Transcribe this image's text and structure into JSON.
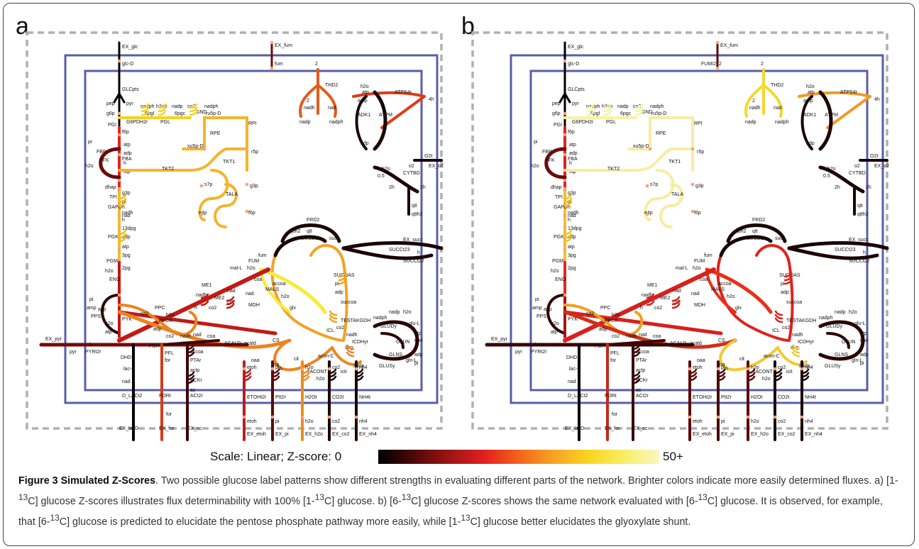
{
  "panels": [
    {
      "letter": "a",
      "rxn": {
        "GLC": "#000",
        "OXPPP": "#f5d21e",
        "NONOXPPP": "#f3b52a",
        "UPPER": "#e2231a",
        "LOWER": "#f3bc22",
        "ENO": "#c41414",
        "PPS": "#2e0505",
        "PYK": "#c41414",
        "FBP": "#6e0a0a",
        "PYR": "#7a0808",
        "ACE": "#3a0606",
        "PPC": "#f0821e",
        "PPCK": "#f0821e",
        "ME": "#c21a14",
        "TCA": "#f2a322",
        "GLX": "#f7ea3a",
        "CIT": "#f0841e",
        "SDH": "#1a0404",
        "THD": "#e35a1c",
        "ATPS": "#e13a18",
        "NADH": "#1a0404",
        "GLN": "#2a0505",
        "ETOH": "#b51e1e",
        "PI": "#5a0a0a",
        "H2O": "#ef8a1e",
        "CO2": "#1a0404",
        "NH4": "#1a0404",
        "LAC": "#000",
        "FOR": "#d43c1a",
        "AC": "#3a0606",
        "FUM": "#7a0808"
      }
    },
    {
      "letter": "b",
      "rxn": {
        "GLC": "#000",
        "OXPPP": "#f7f2a4",
        "NONOXPPP": "#f8eca0",
        "UPPER": "#e32020",
        "LOWER": "#f4c024",
        "ENO": "#e22a1a",
        "PPS": "#2e0505",
        "PYK": "#a51414",
        "FBP": "#6e0a0a",
        "PYR": "#3a0606",
        "ACE": "#3a0606",
        "PPC": "#f0a020",
        "PPCK": "#d23018",
        "ME": "#d8201c",
        "TCA": "#e0221c",
        "GLX": "#e83018",
        "CIT": "#f5c830",
        "SDH": "#1a0404",
        "THD": "#f4d82c",
        "ATPS": "#f29a22",
        "NADH": "#1a0404",
        "GLN": "#2a0505",
        "ETOH": "#5a0a0a",
        "PI": "#4a0808",
        "H2O": "#5a0a0a",
        "CO2": "#1a0404",
        "NH4": "#1a0404",
        "LAC": "#000",
        "FOR": "#c22a1a",
        "AC": "#3a0606",
        "FUM": "#5a0a0a"
      }
    }
  ],
  "labels": {
    "EX_glc": "EX_glc",
    "glcD": "glc-D",
    "GLCpts": "GLCpts",
    "pep": "pep",
    "pyr": "pyr",
    "g6p": "g6p",
    "PGI": "PGI",
    "f6p": "f6p",
    "pi": "pi",
    "FBP": "FBP",
    "PFK": "PFK",
    "h2o": "h2o",
    "atp": "atp",
    "adp": "adp",
    "h": "h",
    "fdp": "fdp",
    "FBA": "FBA",
    "dhap": "dhap",
    "TPI": "TPI",
    "g3p": "g3p",
    "GAPD": "GAPD",
    "nadh": "nadh",
    "nad": "nad",
    "13dpg": "13dpg",
    "PGK": "PGK",
    "3pg": "3pg",
    "PGM": "PGM",
    "2pg": "2pg",
    "ENO": "ENO",
    "PPS": "PPS",
    "amp": "amp",
    "PYK": "PYK",
    "EX_pyr": "EX_pyr",
    "PYRt2r": "PYRt2r",
    "G6PDH2r": "G6PDH2r",
    "nadph": "nadph",
    "nadp": "nadp",
    "h2oh": "h2oh",
    "6pgl": "6pgl",
    "PGL": "PGL",
    "6pgc": "6pgc",
    "GND": "GND",
    "co2": "co2",
    "ru5pD": "ru5p-D",
    "RPE": "RPE",
    "RPI": "RPI",
    "xu5pD": "xu5p-D",
    "r5p": "r5p",
    "TKT1": "TKT1",
    "TKT2": "TKT2",
    "s7p": "s7p",
    "TALA": "TALA",
    "e4p": "e4p",
    "f6p2": "f6p",
    "EX_fum": "EX_fum",
    "fum": "fum",
    "FUMI2_2": "FUMI2_2",
    "two": "2",
    "THD2": "THD2",
    "fourh": "4h",
    "ATPS4r": "ATPS4r",
    "ADK1": "ADK1",
    "ATPM": "ATPM",
    "O2t": "O2t",
    "o2": "o2",
    "EX_o2": "EX_o2",
    "half": "0.5",
    "CYTBD": "CYTBD",
    "twoh": "2h",
    "q8": "q8",
    "q8h2": "q8h2",
    "FRD2": "FRD2",
    "SUCD1i": "SUCD1i",
    "succ": "succ",
    "EX_succ": "EX_succ",
    "SUCCt23": "SUCCt23",
    "SUCCt22": "SUCCt22",
    "FUM": "FUM",
    "SUCOAS": "SUCOAS",
    "coa": "coa",
    "succoa": "succoa",
    "TESTAKGDH": "TESTAKGDH",
    "akg": "akg",
    "malL": "mal-L",
    "ME1": "ME1",
    "ME2": "ME2",
    "MDH": "MDH",
    "MALS": "MALS",
    "accoa": "accoa",
    "glx": "glx",
    "ICL": "ICL",
    "PPC": "PPC",
    "PPCK": "PPCK",
    "oaa": "oaa",
    "CS": "CS",
    "cit": "cit",
    "aconC": "acon-C",
    "ACONT": "rACONT",
    "icit": "icit",
    "ICDHyr": "ICDHyr",
    "GLUDy": "GLUDy",
    "glnL": "gln-L",
    "gluL": "glu-L",
    "GLNS": "GLNS",
    "GLUSy": "GLUSy",
    "GLUN": "GLUN",
    "nh4": "nh4",
    "PDH": "PDH",
    "PFL": "PFL",
    "for": "for",
    "PTAr": "PTAr",
    "actp": "actp",
    "ACKr": "ACKr",
    "ac": "ac",
    "ACALD": "ACALD",
    "acald": "acald",
    "etoh": "etoh",
    "LDH": "LDH_D",
    "DHD": "DHD",
    "lacD": "lac-D",
    "D_LACt2": "D_LACt2",
    "FORt": "FORt",
    "ACt2r": "ACt2r",
    "ETOHt2r": "ETOHt2r",
    "PIt2r": "PIt2r",
    "H2Ot": "H2Ot",
    "CO2t": "CO2t",
    "NH4t": "NH4t",
    "EX_lacD": "EX_lacD",
    "EX_for": "EX_for",
    "EX_ac": "EX_ac",
    "EX_etoh": "EX_etoh",
    "EX_pi": "EX_pi",
    "EX_h2o": "EX_h2o",
    "EX_co2": "EX_co2",
    "EX_nh4": "EX_nh4"
  },
  "scale": {
    "label": "Scale: Linear; Z-score: 0",
    "max_label": "50+"
  },
  "caption": {
    "lead": "Figure 3 Simulated Z-Scores",
    "s1": ". Two possible glucose label patterns show different strengths in evaluating different parts of the network. Brighter colors indicate more easily determined fluxes. a) [1-",
    "s2": "C] glucose Z-scores illustrates flux determinability with 100% [1-",
    "s3": "C] glucose. b) [6-",
    "s4": "C] glucose Z-scores shows the same network evaluated with [6-",
    "s5": "C] glucose. It is observed, for example, that [6-",
    "s6": "C] glucose is predicted to elucidate the pentose phosphate pathway more easily, while [1-",
    "s7": "C] glucose better elucidates the glyoxylate shunt.",
    "iso": "13"
  }
}
